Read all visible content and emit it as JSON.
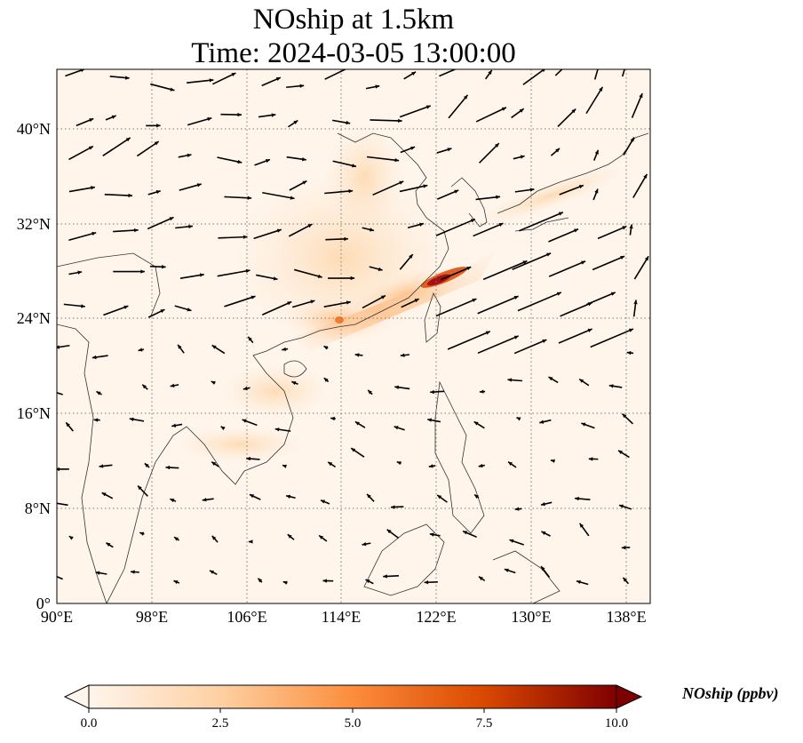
{
  "title": {
    "line1": "NOship at 1.5km",
    "line2": "Time: 2024-03-05 13:00:00"
  },
  "map": {
    "projection": "PlateCarree",
    "lon_range": [
      90,
      140
    ],
    "lat_range": [
      0,
      45
    ],
    "gridlines": "dotted",
    "lat_ticks": [
      "40°N",
      "32°N",
      "24°N",
      "16°N",
      "8°N",
      "0°"
    ],
    "lon_ticks": [
      "90°E",
      "98°E",
      "106°E",
      "114°E",
      "122°E",
      "130°E",
      "138°E"
    ],
    "overlay": "wind vectors (black arrows)",
    "hotspot": "East China Sea shipping lane near 122–125°E, 27–29°N"
  },
  "colorbar": {
    "label": "NOship (ppbv)",
    "ticks": [
      "0.0",
      "2.5",
      "5.0",
      "7.5",
      "10.0"
    ],
    "range": [
      0,
      10
    ],
    "colormap": [
      "#fff5eb",
      "#fdd0a2",
      "#fd8d3c",
      "#d94801",
      "#7f0000"
    ],
    "extend": "both"
  }
}
